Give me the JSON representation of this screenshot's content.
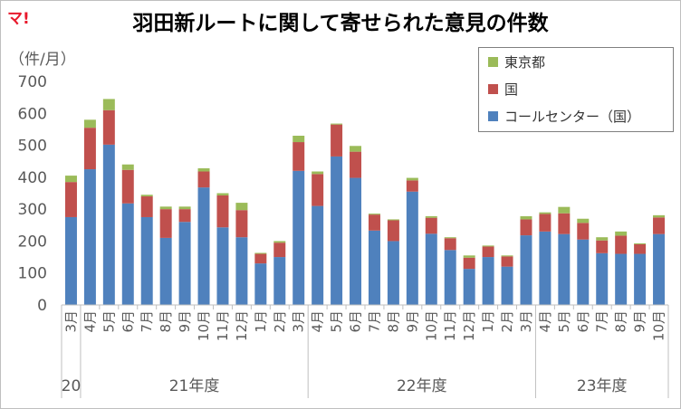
{
  "logo": "マ!",
  "colors": {
    "call_center": "#4f81bd",
    "national": "#c0504d",
    "tokyo": "#9bbb59",
    "axis": "#bfbfbf",
    "text": "#595959"
  },
  "chart_data": {
    "type": "bar",
    "stacked": true,
    "title": "羽田新ルートに関して寄せられた意見の件数",
    "ylabel": "（件/月）",
    "ylim": [
      0,
      700
    ],
    "yticks": [
      0,
      100,
      200,
      300,
      400,
      500,
      600,
      700
    ],
    "grid": false,
    "legend_position": "top-right",
    "categories": [
      "3月",
      "4月",
      "5月",
      "6月",
      "7月",
      "8月",
      "9月",
      "10月",
      "11月",
      "12月",
      "1月",
      "2月",
      "3月",
      "4月",
      "5月",
      "6月",
      "7月",
      "8月",
      "9月",
      "10月",
      "11月",
      "12月",
      "1月",
      "2月",
      "3月",
      "4月",
      "5月",
      "6月",
      "7月",
      "8月",
      "9月",
      "10月"
    ],
    "year_groups": [
      {
        "label": "20",
        "start": 0,
        "end": 0
      },
      {
        "label": "21年度",
        "start": 1,
        "end": 12
      },
      {
        "label": "22年度",
        "start": 13,
        "end": 24
      },
      {
        "label": "23年度",
        "start": 25,
        "end": 31
      }
    ],
    "series": [
      {
        "name": "コールセンター（国）",
        "color": "#4f81bd",
        "values": [
          275,
          425,
          502,
          318,
          275,
          210,
          260,
          368,
          243,
          212,
          130,
          150,
          420,
          310,
          465,
          398,
          233,
          200,
          355,
          223,
          172,
          113,
          150,
          120,
          218,
          230,
          222,
          205,
          162,
          160,
          160,
          222
        ]
      },
      {
        "name": "国",
        "color": "#c0504d",
        "values": [
          110,
          130,
          108,
          105,
          65,
          90,
          40,
          50,
          100,
          85,
          30,
          45,
          90,
          100,
          100,
          82,
          50,
          65,
          35,
          50,
          37,
          35,
          33,
          32,
          50,
          55,
          65,
          52,
          40,
          57,
          30,
          52
        ]
      },
      {
        "name": "東京都",
        "color": "#9bbb59",
        "values": [
          20,
          25,
          35,
          17,
          5,
          8,
          8,
          10,
          7,
          23,
          3,
          5,
          20,
          8,
          3,
          18,
          3,
          3,
          8,
          5,
          3,
          7,
          3,
          3,
          10,
          5,
          20,
          13,
          10,
          13,
          3,
          7
        ]
      }
    ]
  },
  "legend": [
    {
      "label": "東京都",
      "color": "#9bbb59"
    },
    {
      "label": "国",
      "color": "#c0504d"
    },
    {
      "label": "コールセンター（国）",
      "color": "#4f81bd"
    }
  ]
}
